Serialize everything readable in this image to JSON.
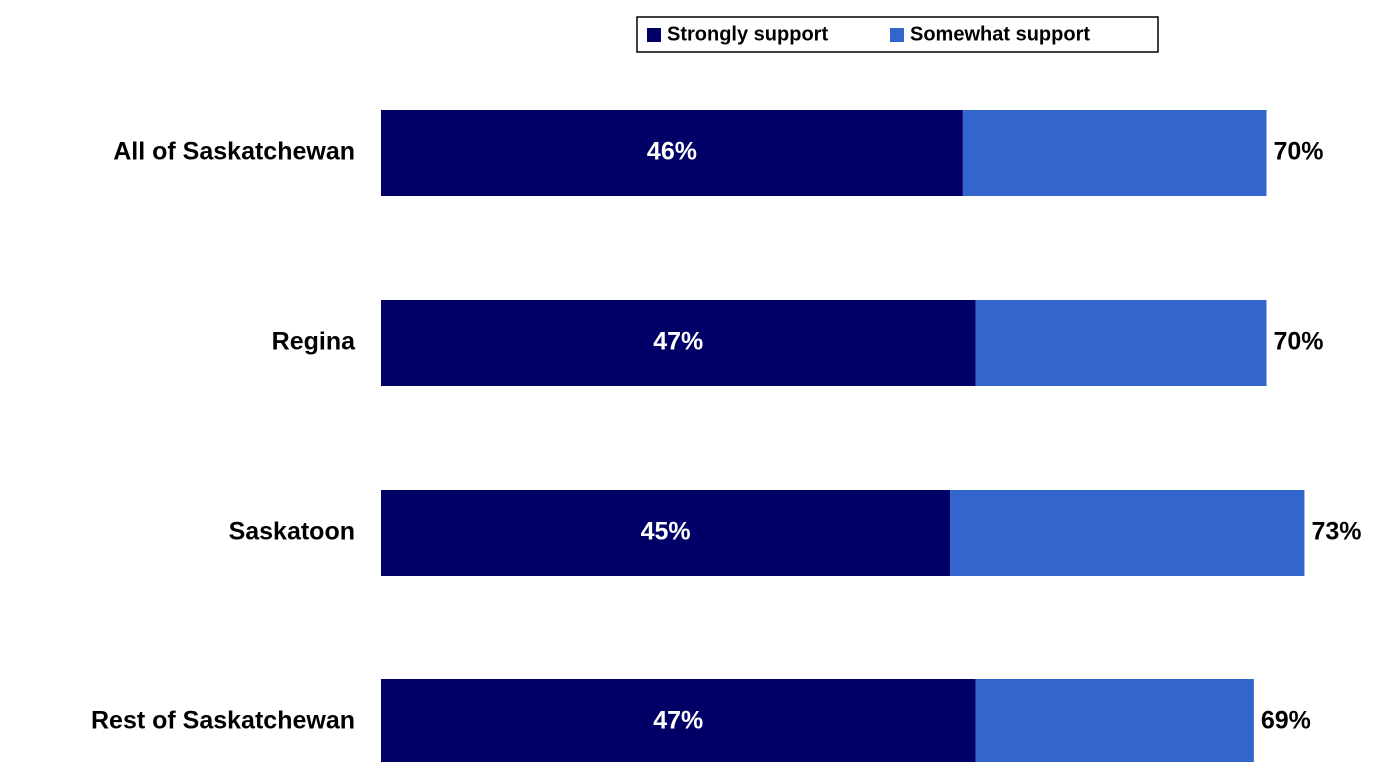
{
  "chart_data": {
    "type": "stacked-bar-horizontal",
    "categories": [
      "All of Saskatchewan",
      "Regina",
      "Saskatoon",
      "Rest of Saskatchewan"
    ],
    "series": [
      {
        "name": "Strongly support",
        "color": "#000066",
        "values": [
          46,
          47,
          45,
          47
        ],
        "value_labels": [
          "46%",
          "47%",
          "45%",
          "47%"
        ]
      },
      {
        "name": "Somewhat support",
        "color": "#3366cc",
        "values": [
          24,
          23,
          28,
          22
        ]
      }
    ],
    "total_labels": [
      "70%",
      "70%",
      "73%",
      "69%"
    ],
    "legend": "top"
  }
}
